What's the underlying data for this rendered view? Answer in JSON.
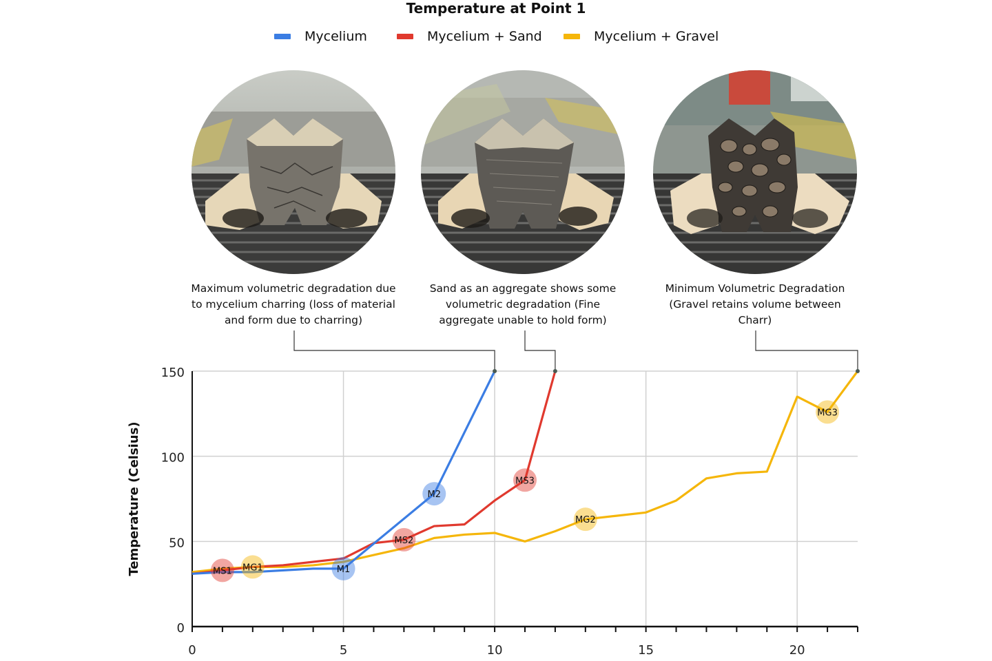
{
  "chart_data": {
    "type": "line",
    "title": "Temperature at Point 1",
    "xlabel": "",
    "ylabel": "Temperature (Celsius)",
    "xlim": [
      0,
      22
    ],
    "ylim": [
      0,
      150
    ],
    "x_ticks": [
      0,
      5,
      10,
      15,
      20
    ],
    "y_ticks": [
      0,
      50,
      100,
      150
    ],
    "grid": true,
    "legend_position": "top-center",
    "series": [
      {
        "name": "Mycelium",
        "color": "#3b7de3",
        "points": [
          [
            0,
            31
          ],
          [
            1,
            32
          ],
          [
            2,
            32
          ],
          [
            3,
            33
          ],
          [
            4,
            34
          ],
          [
            5,
            34
          ],
          [
            8,
            78
          ],
          [
            10,
            150
          ]
        ]
      },
      {
        "name": "Mycelium + Sand",
        "color": "#e0392e",
        "points": [
          [
            0,
            31
          ],
          [
            1,
            33
          ],
          [
            2,
            35
          ],
          [
            3,
            36
          ],
          [
            4,
            38
          ],
          [
            5,
            40
          ],
          [
            6,
            49
          ],
          [
            7,
            51
          ],
          [
            8,
            59
          ],
          [
            9,
            60
          ],
          [
            10,
            74
          ],
          [
            11,
            86
          ],
          [
            12,
            150
          ]
        ]
      },
      {
        "name": "Mycelium + Gravel",
        "color": "#f5b60a",
        "points": [
          [
            0,
            32
          ],
          [
            1,
            34
          ],
          [
            2,
            35
          ],
          [
            3,
            35
          ],
          [
            4,
            36
          ],
          [
            5,
            38
          ],
          [
            6,
            42
          ],
          [
            7,
            46
          ],
          [
            8,
            52
          ],
          [
            9,
            54
          ],
          [
            10,
            55
          ],
          [
            11,
            50
          ],
          [
            12,
            56
          ],
          [
            13,
            63
          ],
          [
            14,
            65
          ],
          [
            15,
            67
          ],
          [
            16,
            74
          ],
          [
            17,
            87
          ],
          [
            18,
            90
          ],
          [
            19,
            91
          ],
          [
            20,
            135
          ],
          [
            21,
            126
          ],
          [
            22,
            150
          ]
        ]
      }
    ],
    "markers": [
      {
        "label": "M1",
        "series": 0,
        "x": 5,
        "y": 34
      },
      {
        "label": "M2",
        "series": 0,
        "x": 8,
        "y": 78
      },
      {
        "label": "MS1",
        "series": 1,
        "x": 1,
        "y": 33
      },
      {
        "label": "MS2",
        "series": 1,
        "x": 7,
        "y": 51
      },
      {
        "label": "MS3",
        "series": 1,
        "x": 11,
        "y": 86
      },
      {
        "label": "MG1",
        "series": 2,
        "x": 2,
        "y": 35
      },
      {
        "label": "MG2",
        "series": 2,
        "x": 13,
        "y": 63
      },
      {
        "label": "MG3",
        "series": 2,
        "x": 21,
        "y": 126
      }
    ],
    "callouts": [
      {
        "series": 0,
        "x": 10,
        "y": 150,
        "text": "Maximum volumetric degradation due to mycelium charring (loss of material and form due to charring)"
      },
      {
        "series": 1,
        "x": 12,
        "y": 150,
        "text": "Sand as an aggregate shows some volumetric degradation (Fine aggregate unable to hold form)"
      },
      {
        "series": 2,
        "x": 22,
        "y": 150,
        "text": "Minimum Volumetric Degradation (Gravel retains volume between Charr)"
      }
    ]
  },
  "captions": {
    "mycelium": [
      "Maximum volumetric degradation due",
      "to mycelium charring (loss of material",
      "and form due to charring)"
    ],
    "sand": [
      "Sand as an aggregate shows some",
      "volumetric degradation (Fine",
      "aggregate unable to hold form)"
    ],
    "gravel": [
      "Minimum Volumetric Degradation",
      "(Gravel retains volume between",
      "Charr)"
    ]
  },
  "photos": {
    "mycelium": "charred-mycelium-sample-photo",
    "sand": "charred-mycelium-sand-sample-photo",
    "gravel": "charred-mycelium-gravel-sample-photo"
  }
}
